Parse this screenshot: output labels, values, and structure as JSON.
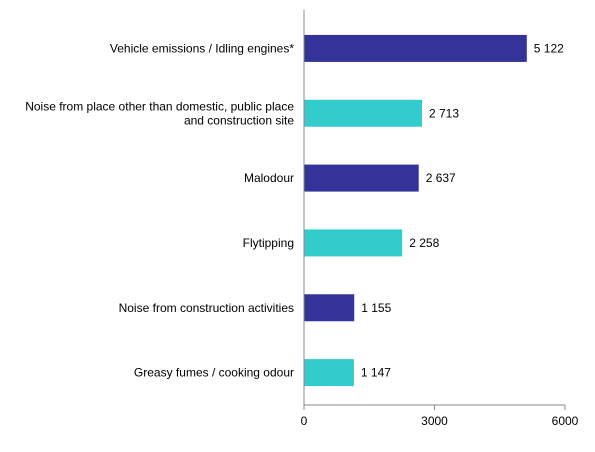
{
  "chart_data": {
    "type": "bar",
    "orientation": "horizontal",
    "categories": [
      [
        "Vehicle emissions / Idling engines*"
      ],
      [
        "Noise from place other than domestic, public place",
        "and construction site"
      ],
      [
        "Malodour"
      ],
      [
        "Flytipping"
      ],
      [
        "Noise from construction activities"
      ],
      [
        "Greasy fumes / cooking odour"
      ]
    ],
    "values": [
      5122,
      2713,
      2637,
      2258,
      1155,
      1147
    ],
    "value_labels": [
      "5 122",
      "2 713",
      "2 637",
      "2 258",
      "1 155",
      "1 147"
    ],
    "bar_colors": [
      "#333399",
      "#33cccc",
      "#333399",
      "#33cccc",
      "#333399",
      "#33cccc"
    ],
    "xlim": [
      0,
      6000
    ],
    "x_ticks": [
      0,
      3000,
      6000
    ],
    "x_tick_labels": [
      "0",
      "3000",
      "6000"
    ],
    "title": "",
    "xlabel": "",
    "ylabel": "",
    "grid": false,
    "legend": "none"
  }
}
